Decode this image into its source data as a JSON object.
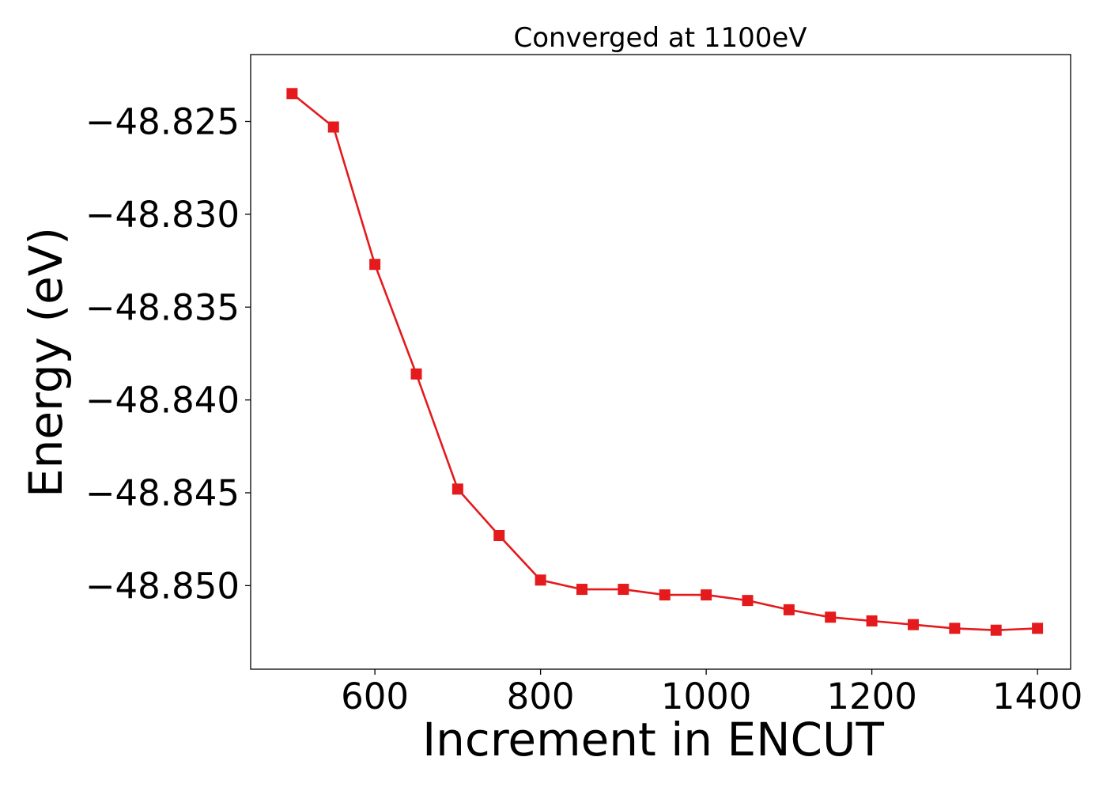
{
  "chart_data": {
    "type": "line",
    "title": "Converged at 1100eV",
    "xlabel": "Increment in ENCUT",
    "ylabel": "Energy (eV)",
    "xlim": [
      450,
      1440
    ],
    "ylim": [
      -48.8545,
      -48.8214
    ],
    "xticks": [
      600,
      800,
      1000,
      1200,
      1400
    ],
    "xtick_labels": [
      "600",
      "800",
      "1000",
      "1200",
      "1400"
    ],
    "yticks": [
      -48.825,
      -48.83,
      -48.835,
      -48.84,
      -48.845,
      -48.85
    ],
    "ytick_labels": [
      "−48.825",
      "−48.830",
      "−48.835",
      "−48.840",
      "−48.845",
      "−48.850"
    ],
    "grid": false,
    "series": [
      {
        "color": "#e41a1c",
        "marker": "square",
        "x": [
          500,
          550,
          600,
          650,
          700,
          750,
          800,
          850,
          900,
          950,
          1000,
          1050,
          1100,
          1150,
          1200,
          1250,
          1300,
          1350,
          1400
        ],
        "y": [
          -48.8235,
          -48.8253,
          -48.8327,
          -48.8386,
          -48.8448,
          -48.8473,
          -48.8497,
          -48.8502,
          -48.8502,
          -48.8505,
          -48.8505,
          -48.8508,
          -48.8513,
          -48.8517,
          -48.8519,
          -48.8521,
          -48.8523,
          -48.8524,
          -48.8523
        ]
      }
    ]
  }
}
